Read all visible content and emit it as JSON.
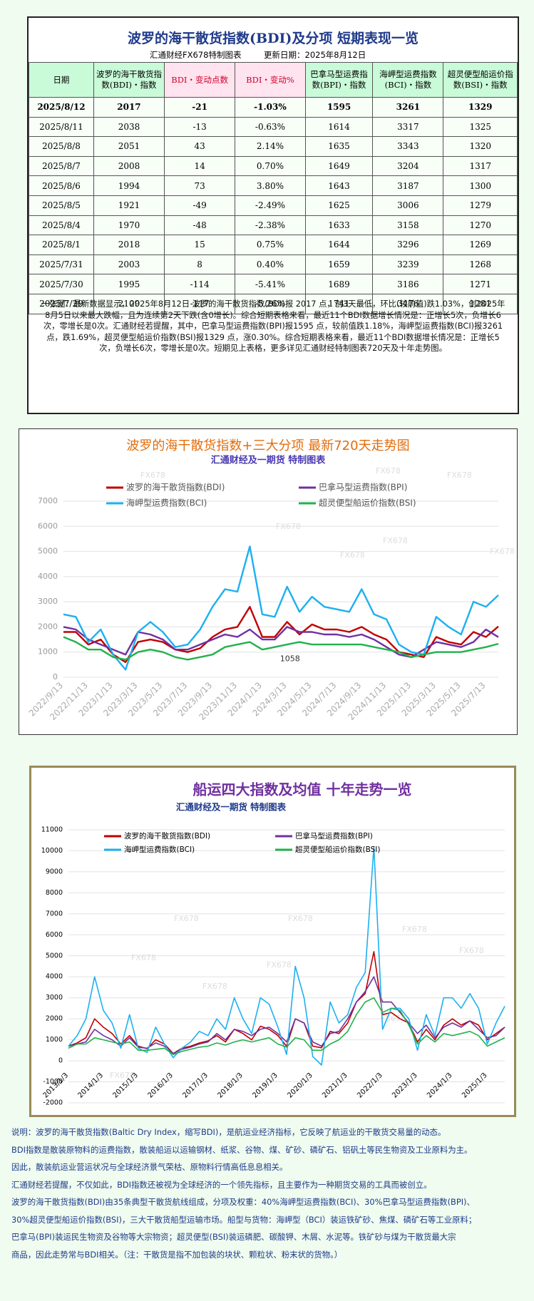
{
  "header": {
    "title": "波罗的海干散货指数(BDI)及分项  短期表现一览",
    "source": "汇通财经FX678特制图表",
    "updated": "更新日期：2025年8月12日"
  },
  "table": {
    "columns": [
      "日期",
      "波罗的海干散货指数(BDI)・指数",
      "BDI・变动点数",
      "BDI・变动%",
      "巴拿马型运费指数(BPI)・指数",
      "海岬型运费指数(BCI)・指数",
      "超灵便型船运价指数(BSI)・指数"
    ],
    "rows": [
      [
        "2025/8/12",
        "2017",
        "-21",
        "-1.03%",
        "1595",
        "3261",
        "1329"
      ],
      [
        "2025/8/11",
        "2038",
        "-13",
        "-0.63%",
        "1614",
        "3317",
        "1325"
      ],
      [
        "2025/8/8",
        "2051",
        "43",
        "2.14%",
        "1635",
        "3343",
        "1320"
      ],
      [
        "2025/8/7",
        "2008",
        "14",
        "0.70%",
        "1649",
        "3204",
        "1317"
      ],
      [
        "2025/8/6",
        "1994",
        "73",
        "3.80%",
        "1643",
        "3187",
        "1300"
      ],
      [
        "2025/8/5",
        "1921",
        "-49",
        "-2.49%",
        "1625",
        "3006",
        "1279"
      ],
      [
        "2025/8/4",
        "1970",
        "-48",
        "-2.38%",
        "1633",
        "3158",
        "1270"
      ],
      [
        "2025/8/1",
        "2018",
        "15",
        "0.75%",
        "1644",
        "3296",
        "1269"
      ],
      [
        "2025/7/31",
        "2003",
        "8",
        "0.40%",
        "1659",
        "3239",
        "1268"
      ],
      [
        "2025/7/30",
        "1995",
        "-114",
        "-5.41%",
        "1689",
        "3186",
        "1271"
      ],
      [
        "2025/7/29",
        "2109",
        "-117",
        "-5.26%",
        "1741",
        "3476",
        "1281"
      ]
    ]
  },
  "summary": "一张图：最新数据显示，2025年8月12日 波罗的海干散货指数(BDI)报 2017 点，创3天最低，环比(较前值)跌1.03%，创2025年8月5日以来最大跌幅，且为连续第2天下跌(含0增长)。综合短期表格来看，最近11个BDI数据增长情况是：正增长5次，负增长6次，零增长是0次。汇通财经若提醒，其中，巴拿马型运费指数(BPI)报1595 点，较前值跌1.18%，海岬型运费指数(BCI)报3261 点，跌1.69%，超灵便型船运价指数(BSI)报1329 点，涨0.30%。综合短期表格来看，最近11个BDI数据增长情况是：正增长5次，负增长6次，零增长是0次。短期见上表格，更多详见汇通财经特制图表720天及十年走势图。",
  "chart_data": [
    {
      "type": "line",
      "title": "波罗的海干散货指数+三大分项  最新720天走势图",
      "subtitle": "汇通财经及一期货 特制图表",
      "annotation": "1058",
      "watermark": "FX678",
      "categories": [
        "2022/9/13",
        null,
        "2022/11/13",
        null,
        "2023/1/13",
        null,
        "2023/3/13",
        null,
        "2023/5/13",
        null,
        "2023/7/13",
        null,
        "2023/9/13",
        null,
        "2023/11/13",
        null,
        "2024/1/13",
        null,
        "2024/3/13",
        null,
        "2024/5/13",
        null,
        "2024/7/13",
        null,
        "2024/9/13",
        null,
        "2024/11/13",
        null,
        "2025/1/13",
        null,
        "2025/3/13",
        null,
        "2025/5/13",
        null,
        "2025/7/13",
        null
      ],
      "series": [
        {
          "name": "波罗的海干散货指数(BDI)",
          "color": "#c00000",
          "values": [
            1800,
            1800,
            1300,
            1500,
            900,
            600,
            1400,
            1500,
            1400,
            1100,
            1000,
            1150,
            1600,
            1900,
            2000,
            2800,
            1600,
            1600,
            2200,
            1700,
            2100,
            1900,
            1900,
            1800,
            2000,
            1700,
            1500,
            1000,
            900,
            800,
            1600,
            1400,
            1300,
            1800,
            1600,
            2017
          ]
        },
        {
          "name": "巴拿马型运费指数(BPI)",
          "color": "#7030a0",
          "values": [
            2000,
            1900,
            1500,
            1300,
            1100,
            900,
            1800,
            1700,
            1500,
            1100,
            1100,
            1300,
            1500,
            1700,
            1600,
            1900,
            1500,
            1500,
            2000,
            1800,
            1800,
            1700,
            1700,
            1600,
            1700,
            1500,
            1200,
            900,
            800,
            1100,
            1400,
            1300,
            1200,
            1400,
            1900,
            1595
          ]
        },
        {
          "name": "海岬型运费指数(BCI)",
          "color": "#1cb0f0",
          "values": [
            2500,
            2400,
            1400,
            1900,
            900,
            300,
            1800,
            2200,
            1800,
            1200,
            1300,
            1900,
            2800,
            3500,
            3400,
            5200,
            2500,
            2400,
            3600,
            2600,
            3200,
            2800,
            2700,
            2600,
            3500,
            2500,
            2300,
            1300,
            1000,
            900,
            2400,
            2000,
            1700,
            3000,
            2800,
            3261
          ]
        },
        {
          "name": "超灵便型船运价指数(BSI)",
          "color": "#22b14c",
          "values": [
            1600,
            1400,
            1100,
            1100,
            800,
            700,
            1000,
            1100,
            1000,
            800,
            700,
            800,
            900,
            1200,
            1300,
            1400,
            1100,
            1200,
            1300,
            1400,
            1300,
            1300,
            1300,
            1300,
            1300,
            1200,
            1100,
            1000,
            800,
            900,
            1000,
            1000,
            1000,
            1100,
            1200,
            1329
          ]
        }
      ],
      "ylim": [
        0,
        7000
      ],
      "yticks": [
        0,
        1000,
        2000,
        3000,
        4000,
        5000,
        6000,
        7000
      ],
      "grid": true
    },
    {
      "type": "line",
      "title": "船运四大指数及均值 十年走势一览",
      "subtitle": "汇通财经及一期货 特制图表",
      "watermark": "FX678",
      "categories": [
        "2013/1/3",
        null,
        null,
        null,
        "2014/1/3",
        null,
        null,
        null,
        "2015/1/3",
        null,
        null,
        null,
        "2016/1/3",
        null,
        null,
        null,
        "2017/1/3",
        null,
        null,
        null,
        "2018/1/3",
        null,
        null,
        null,
        "2019/1/3",
        null,
        null,
        null,
        "2020/1/3",
        null,
        null,
        null,
        "2021/1/3",
        null,
        null,
        null,
        "2022/1/3",
        null,
        null,
        null,
        "2023/1/3",
        null,
        null,
        null,
        "2024/1/3",
        null,
        null,
        null,
        "2025/1/3",
        null,
        null
      ],
      "series": [
        {
          "name": "波罗的海干散货指数(BDI)",
          "color": "#c00000",
          "values": [
            700,
            850,
            1100,
            2000,
            1600,
            1300,
            800,
            1200,
            700,
            580,
            1000,
            800,
            350,
            600,
            700,
            850,
            950,
            1200,
            900,
            1500,
            1300,
            1000,
            1650,
            1500,
            1200,
            700,
            2000,
            1800,
            700,
            620,
            1400,
            1300,
            1800,
            2800,
            3200,
            5200,
            2200,
            2300,
            2000,
            1800,
            900,
            1500,
            1000,
            1700,
            2000,
            1700,
            1900,
            1700,
            1000,
            1300,
            1600
          ]
        },
        {
          "name": "巴拿马型运费指数(BPI)",
          "color": "#7030a0",
          "values": [
            700,
            800,
            900,
            1500,
            1200,
            1000,
            700,
            1100,
            650,
            600,
            850,
            700,
            350,
            550,
            650,
            800,
            900,
            1300,
            1000,
            1500,
            1400,
            1200,
            1500,
            1600,
            1300,
            900,
            2000,
            1800,
            900,
            700,
            1300,
            1400,
            2000,
            2800,
            3300,
            4000,
            2800,
            2800,
            2300,
            1800,
            1300,
            1700,
            1100,
            1600,
            1800,
            1600,
            1900,
            1500,
            1100,
            1200,
            1600
          ]
        },
        {
          "name": "海岬型运费指数(BCI)",
          "color": "#1cb0f0",
          "values": [
            700,
            1200,
            2000,
            4000,
            2400,
            1800,
            600,
            2200,
            600,
            400,
            1600,
            800,
            150,
            600,
            900,
            1400,
            1200,
            2000,
            1500,
            3000,
            2000,
            1300,
            3000,
            2700,
            1600,
            300,
            4500,
            3000,
            200,
            -200,
            2800,
            1800,
            2200,
            3500,
            4200,
            10200,
            1500,
            2500,
            2500,
            2000,
            500,
            2200,
            1200,
            3000,
            3000,
            2500,
            3200,
            2500,
            800,
            1800,
            2600
          ]
        },
        {
          "name": "超灵便型船运价指数(BSI)",
          "color": "#22b14c",
          "values": [
            600,
            800,
            800,
            1100,
            1000,
            900,
            800,
            900,
            500,
            500,
            550,
            600,
            300,
            450,
            550,
            650,
            700,
            850,
            750,
            900,
            1000,
            900,
            1000,
            1100,
            800,
            650,
            1100,
            1000,
            500,
            500,
            800,
            1000,
            1400,
            2200,
            2800,
            3000,
            2300,
            2500,
            2400,
            1700,
            800,
            1200,
            900,
            1300,
            1200,
            1300,
            1400,
            1200,
            700,
            900,
            1100
          ]
        }
      ],
      "ylim": [
        -2000,
        11000
      ],
      "yticks": [
        -2000,
        -1000,
        0,
        1000,
        2000,
        3000,
        4000,
        5000,
        6000,
        7000,
        8000,
        9000,
        10000,
        11000
      ],
      "grid": true
    }
  ],
  "notes": [
    "说明：波罗的海干散货指数(Baltic Dry Index，缩写BDI)，是航运业经济指标，它反映了航运业的干散货交易量的动态。",
    "BDI指数是散装原物料的运费指数，散装船运以运输钢材、纸浆、谷物、煤、矿砂、磷矿石、铝矾土等民生物资及工业原料为主。",
    "因此，散装航运业营运状况与全球经济景气荣枯、原物料行情高低息息相关。",
    "汇通财经若提醒，不仅如此，BDI指数还被视为全球经济的一个领先指标，且主要作为一种期货交易的工具而被创立。",
    "波罗的海干散货指数(BDI)由35条典型干散货航线组成，分项及权重：40%海岬型运费指数(BCI)、30%巴拿马型运费指数(BPI)、",
    "30%超灵便型船运价指数(BSI)，三大干散货船型运输市场。船型与货物：海岬型（BCI）装运铁矿砂、焦煤、磷矿石等工业原料；",
    "巴拿马(BPI)装运民生物资及谷物等大宗物资；超灵便型(BSI)装运磷肥、碳酸钾、木屑、水泥等。铁矿砂与煤为干散货最大宗",
    "商品，因此走势常与BDI相关。（注：干散货是指不加包装的块状、颗粒状、粉末状的货物。）"
  ]
}
